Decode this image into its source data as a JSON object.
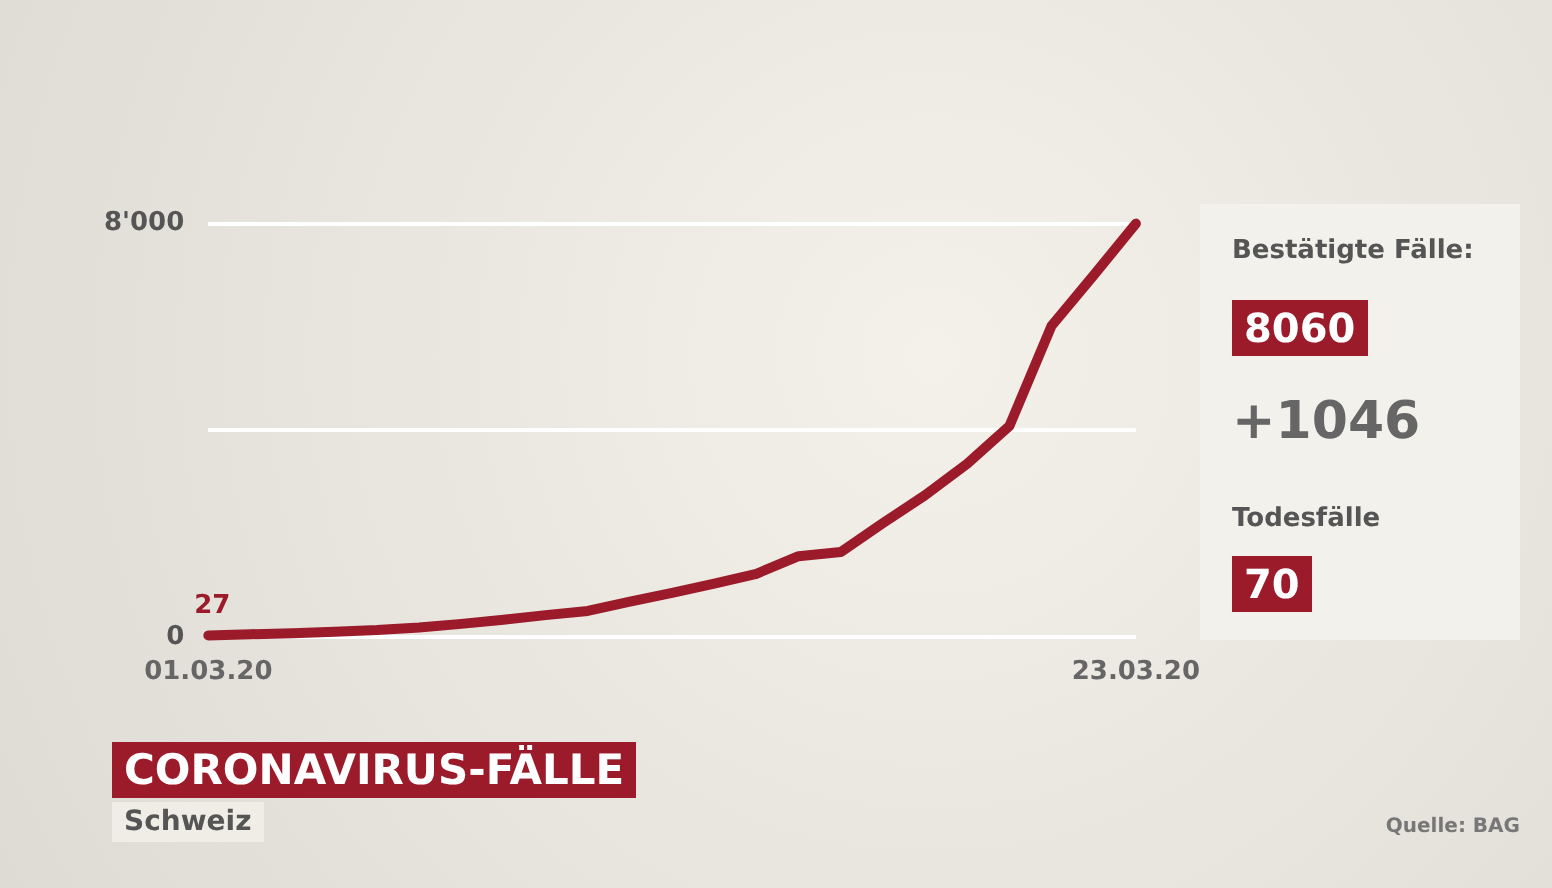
{
  "chart_data": {
    "type": "line",
    "title": "CORONAVIRUS-FÄLLE",
    "subtitle": "Schweiz",
    "categories": [
      "01.03.20",
      null,
      null,
      null,
      null,
      null,
      null,
      null,
      null,
      null,
      null,
      null,
      null,
      null,
      null,
      null,
      null,
      null,
      null,
      null,
      null,
      null,
      "23.03.20"
    ],
    "series": [
      {
        "color": "#9b1b2b",
        "values": [
          27,
          50,
          70,
          100,
          130,
          180,
          250,
          330,
          420,
          500,
          680,
          850,
          1030,
          1220,
          1560,
          1640,
          2200,
          2740,
          3350,
          4080,
          6020,
          7000,
          8000
        ]
      }
    ],
    "ylim": [
      0,
      8000
    ],
    "yticks": [
      0,
      {
        "value": 4000,
        "label": null
      },
      {
        "value": 8000,
        "label": "8'000"
      }
    ],
    "grid": "y",
    "legend": false,
    "marker": "none",
    "line_style": "solid",
    "annotations": [
      {
        "text": "27",
        "x": "01.03.20",
        "y": 27
      },
      "Bestätigte Fälle:",
      "8060",
      "+1046",
      "Todesfälle",
      "70",
      "Quelle: BAG"
    ]
  }
}
